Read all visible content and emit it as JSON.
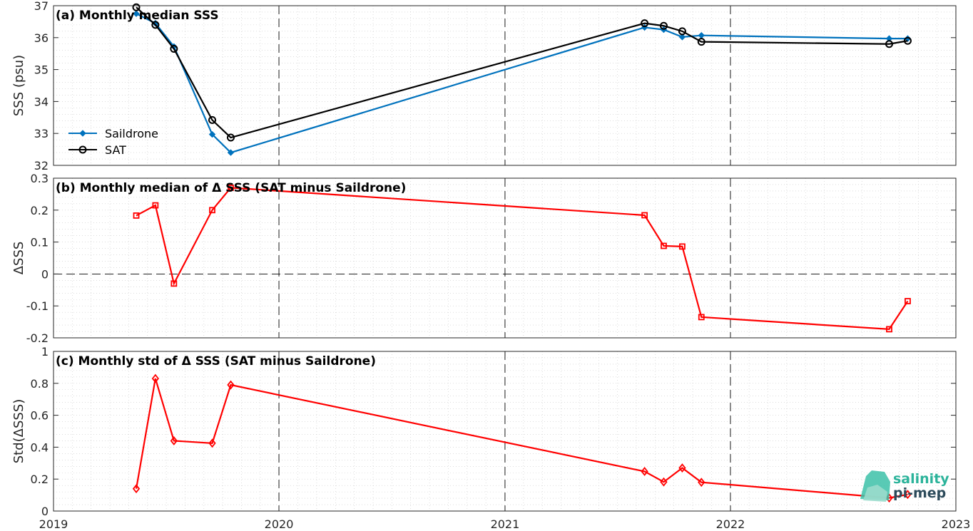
{
  "chart_data": [
    {
      "type": "line",
      "title": "(a) Monthly median SSS",
      "ylabel": "SSS (psu)",
      "ylim": [
        32,
        37
      ],
      "yticks": [
        "32",
        "33",
        "34",
        "35",
        "36",
        "37"
      ],
      "xlim": [
        "2019-01-01",
        "2023-01-01"
      ],
      "xticks": [
        "2019",
        "2020",
        "2021",
        "2022",
        "2023"
      ],
      "grid": "minor dotted, major dashed on years",
      "legend_placement": "bottom-left",
      "series": [
        {
          "name": "Saildrone",
          "color": "#0072bd",
          "marker": "diamond-filled",
          "x": [
            "2019-05",
            "2019-06",
            "2019-07",
            "2019-09",
            "2019-10",
            "2021-08",
            "2021-09",
            "2021-10",
            "2021-11",
            "2022-09",
            "2022-10"
          ],
          "values": [
            36.75,
            36.45,
            35.72,
            32.97,
            32.4,
            36.32,
            36.25,
            36.02,
            36.07,
            35.97,
            35.97
          ]
        },
        {
          "name": "SAT",
          "color": "#000000",
          "marker": "circle-open",
          "x": [
            "2019-05",
            "2019-06",
            "2019-07",
            "2019-09",
            "2019-10",
            "2021-08",
            "2021-09",
            "2021-10",
            "2021-11",
            "2022-09",
            "2022-10"
          ],
          "values": [
            36.95,
            36.4,
            35.65,
            33.42,
            32.87,
            36.45,
            36.37,
            36.2,
            35.87,
            35.8,
            35.9
          ]
        }
      ]
    },
    {
      "type": "line",
      "title": "(b) Monthly median of Δ SSS (SAT minus Saildrone)",
      "ylabel": "ΔSSS",
      "ylim": [
        -0.2,
        0.3
      ],
      "yticks": [
        "-0.2",
        "-0.1",
        "0",
        "0.1",
        "0.2",
        "0.3"
      ],
      "xlim": [
        "2019-01-01",
        "2023-01-01"
      ],
      "reference_line": 0,
      "series": [
        {
          "color": "#ff0000",
          "marker": "square-open",
          "x": [
            "2019-05",
            "2019-06",
            "2019-07",
            "2019-09",
            "2019-10",
            "2021-08",
            "2021-09",
            "2021-10",
            "2021-11",
            "2022-09",
            "2022-10"
          ],
          "values": [
            0.183,
            0.215,
            -0.03,
            0.2,
            0.27,
            0.184,
            0.088,
            0.086,
            -0.135,
            -0.173,
            -0.085
          ]
        }
      ]
    },
    {
      "type": "line",
      "title": "(c) Monthly std of Δ SSS (SAT minus Saildrone)",
      "ylabel": "Std(ΔSSS)",
      "ylim": [
        0,
        1
      ],
      "yticks": [
        "0",
        "0.2",
        "0.4",
        "0.6",
        "0.8",
        "1"
      ],
      "xlim": [
        "2019-01-01",
        "2023-01-01"
      ],
      "xticks": [
        "2019",
        "2020",
        "2021",
        "2022",
        "2023"
      ],
      "series": [
        {
          "color": "#ff0000",
          "marker": "diamond-open",
          "x": [
            "2019-05",
            "2019-06",
            "2019-07",
            "2019-09",
            "2019-10",
            "2021-08",
            "2021-09",
            "2021-10",
            "2021-11",
            "2022-09",
            "2022-10"
          ],
          "values": [
            0.14,
            0.83,
            0.44,
            0.425,
            0.79,
            0.248,
            0.182,
            0.27,
            0.18,
            0.082,
            0.104
          ]
        }
      ]
    }
  ],
  "logo": {
    "line1": "salinity",
    "line2": "pi-mep",
    "colors": [
      "#2bb39a",
      "#2c4a5a"
    ]
  }
}
